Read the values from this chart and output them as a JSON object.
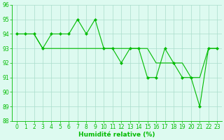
{
  "x_values": [
    0,
    1,
    2,
    3,
    4,
    5,
    6,
    7,
    8,
    9,
    10,
    11,
    12,
    13,
    14,
    15,
    16,
    17,
    18,
    19,
    20,
    21,
    22,
    23
  ],
  "y_main": [
    94,
    94,
    94,
    93,
    94,
    94,
    94,
    95,
    94,
    95,
    93,
    93,
    92,
    93,
    93,
    91,
    91,
    93,
    92,
    91,
    91,
    89,
    93,
    93
  ],
  "y_trend": [
    94,
    94,
    94,
    93,
    93,
    93,
    93,
    93,
    93,
    93,
    93,
    93,
    93,
    93,
    93,
    93,
    92,
    92,
    92,
    92,
    91,
    91,
    93,
    93
  ],
  "line_color": "#00BB00",
  "bg_color": "#DDFAF0",
  "grid_color": "#AADDCC",
  "xlabel": "Humidité relative (%)",
  "ylim": [
    88,
    96
  ],
  "xlim": [
    -0.5,
    23.5
  ],
  "yticks": [
    88,
    89,
    90,
    91,
    92,
    93,
    94,
    95,
    96
  ],
  "xticks": [
    0,
    1,
    2,
    3,
    4,
    5,
    6,
    7,
    8,
    9,
    10,
    11,
    12,
    13,
    14,
    15,
    16,
    17,
    18,
    19,
    20,
    21,
    22,
    23
  ],
  "tick_fontsize": 5.5,
  "xlabel_fontsize": 6.5
}
